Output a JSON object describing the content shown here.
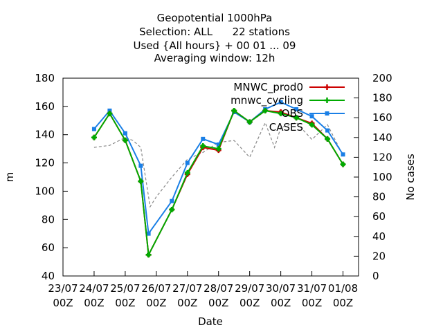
{
  "chart_data": {
    "type": "line",
    "title_lines": [
      "Geopotential 1000hPa",
      "Selection: ALL      22 stations",
      "Used {All hours} + 00 01 ... 09",
      "Averaging window: 12h"
    ],
    "xlabel": "Date",
    "ylabel": "m",
    "y2label": "No cases",
    "ylim": [
      40,
      180
    ],
    "y2lim": [
      0,
      200
    ],
    "yticks": [
      "40",
      "60",
      "80",
      "100",
      "120",
      "140",
      "160",
      "180"
    ],
    "y2ticks": [
      "0",
      "20",
      "40",
      "60",
      "80",
      "100",
      "120",
      "140",
      "160",
      "180",
      "200"
    ],
    "xlim": [
      "2021-07-23 00Z",
      "2021-08-01 12Z"
    ],
    "xticks": [
      {
        "top": "23/07",
        "bottom": "00Z"
      },
      {
        "top": "24/07",
        "bottom": "00Z"
      },
      {
        "top": "25/07",
        "bottom": "00Z"
      },
      {
        "top": "26/07",
        "bottom": "00Z"
      },
      {
        "top": "27/07",
        "bottom": "00Z"
      },
      {
        "top": "28/07",
        "bottom": "00Z"
      },
      {
        "top": "29/07",
        "bottom": "00Z"
      },
      {
        "top": "30/07",
        "bottom": "00Z"
      },
      {
        "top": "31/07",
        "bottom": "00Z"
      },
      {
        "top": "01/08",
        "bottom": "00Z"
      }
    ],
    "grid": false,
    "legend_position": "top-right",
    "x": [
      "24/07 00Z",
      "24/07 12Z",
      "25/07 00Z",
      "25/07 12Z",
      "26/07 00Z",
      "26/07 12Z",
      "27/07 00Z",
      "27/07 12Z",
      "28/07 00Z",
      "28/07 12Z",
      "29/07 00Z",
      "29/07 12Z",
      "30/07 00Z",
      "30/07 12Z",
      "31/07 00Z",
      "31/07 12Z",
      "01/08 00Z"
    ],
    "series": [
      {
        "name": "MNWC_prod0",
        "color": "#cc0000",
        "marker": "plus",
        "axis": "left",
        "x": [
          24,
          24.5,
          25,
          25.5,
          25.75,
          26.5,
          27,
          27.5,
          28,
          28.5,
          29,
          29.5,
          30,
          30.5,
          31,
          31.5,
          32
        ],
        "values": [
          138,
          155,
          136,
          107,
          55,
          87,
          112,
          131,
          129,
          157,
          149,
          157,
          156,
          152,
          148,
          137,
          119
        ]
      },
      {
        "name": "mnwc_cycling",
        "color": "#00aa00",
        "marker": "plus",
        "axis": "left",
        "x": [
          24,
          24.5,
          25,
          25.5,
          25.75,
          26.5,
          27,
          27.5,
          28,
          28.5,
          29,
          29.5,
          30,
          30.5,
          31,
          31.5,
          32
        ],
        "values": [
          138,
          155,
          136,
          107,
          55,
          87,
          113,
          132,
          130,
          157,
          149,
          157,
          155,
          152,
          147,
          137,
          119
        ]
      },
      {
        "name": "OBS",
        "color": "#1a7fe6",
        "marker": "square",
        "axis": "left",
        "x": [
          24,
          24.5,
          25,
          25.5,
          25.75,
          26.5,
          27,
          27.5,
          28,
          28.5,
          29,
          29.5,
          30,
          30.5,
          31,
          31.5,
          32
        ],
        "values": [
          144,
          157,
          141,
          118,
          70,
          93,
          120,
          137,
          133,
          156,
          149,
          158,
          163,
          158,
          153,
          143,
          126
        ]
      },
      {
        "name": "CASES",
        "color": "#888888",
        "marker": "none",
        "axis": "right",
        "dash": true,
        "x": [
          24,
          24.5,
          25,
          25.25,
          25.5,
          25.8,
          26,
          26.5,
          27,
          27.5,
          28,
          28.5,
          29,
          29.5,
          29.8,
          30,
          30.5,
          31,
          31.5,
          32
        ],
        "values": [
          130,
          132,
          140,
          137,
          130,
          70,
          80,
          100,
          118,
          125,
          135,
          137,
          120,
          155,
          130,
          150,
          155,
          138,
          153,
          122
        ]
      }
    ]
  }
}
